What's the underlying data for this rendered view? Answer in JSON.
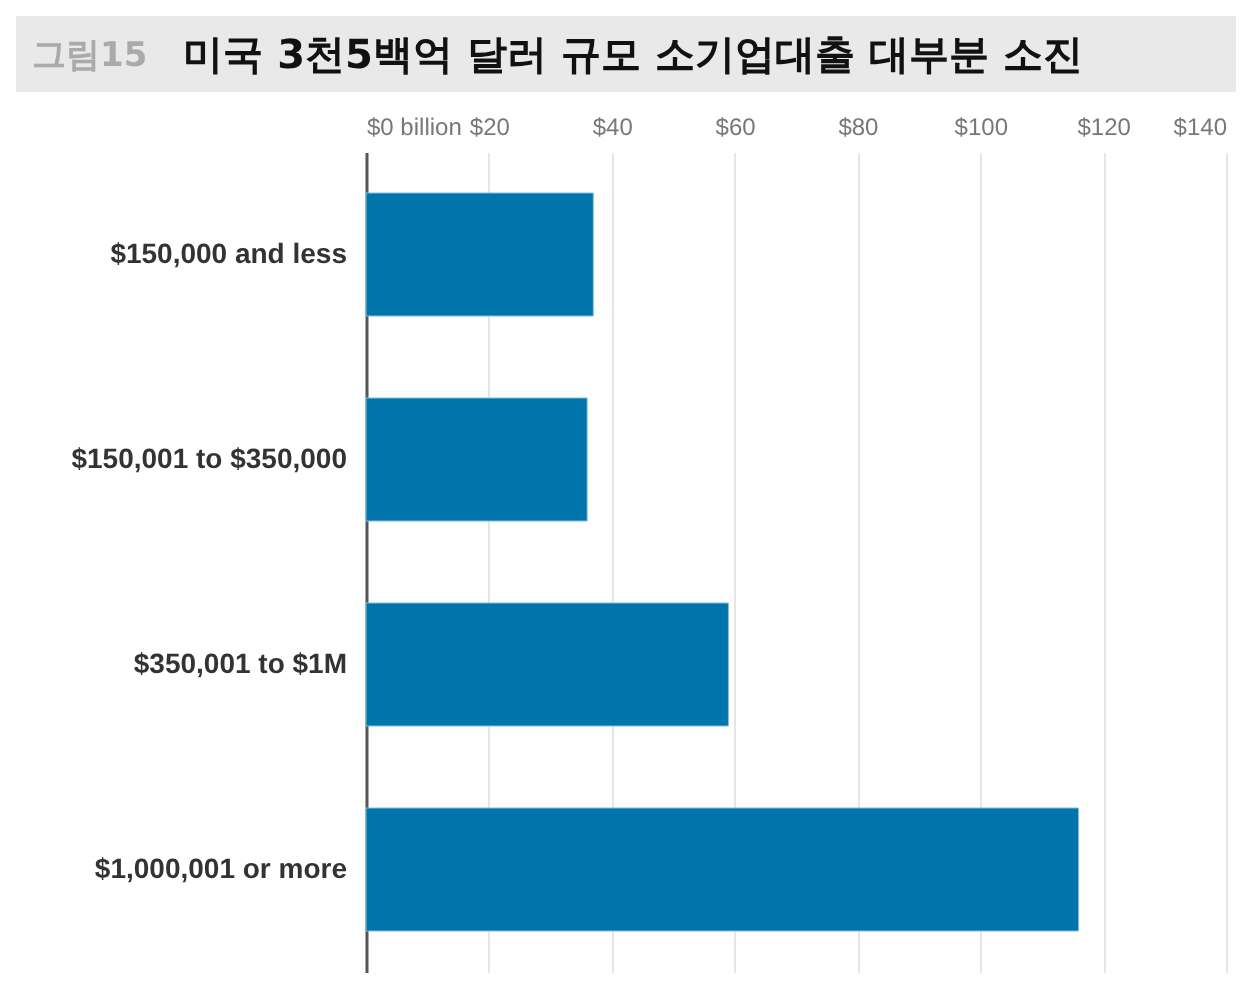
{
  "chart_data": {
    "type": "bar",
    "title": "미국 3천5백억 달러 규모 소기업대출 대부분 소진",
    "subtitle": "그림15",
    "orientation": "horizontal",
    "categories": [
      "$150,000 and less",
      "$150,001 to $350,000",
      "$350,001 to $1M",
      "$1,000,001 or more"
    ],
    "values": [
      37,
      36,
      59,
      116
    ],
    "color": "#0074ab",
    "xlim": [
      0,
      140
    ],
    "xticks": [
      {
        "value": 0,
        "label": "$0 billion"
      },
      {
        "value": 20,
        "label": "$20"
      },
      {
        "value": 40,
        "label": "$40"
      },
      {
        "value": 60,
        "label": "$60"
      },
      {
        "value": 80,
        "label": "$80"
      },
      {
        "value": 100,
        "label": "$100"
      },
      {
        "value": 120,
        "label": "$120"
      },
      {
        "value": 140,
        "label": "$140"
      }
    ],
    "grid": "x"
  }
}
